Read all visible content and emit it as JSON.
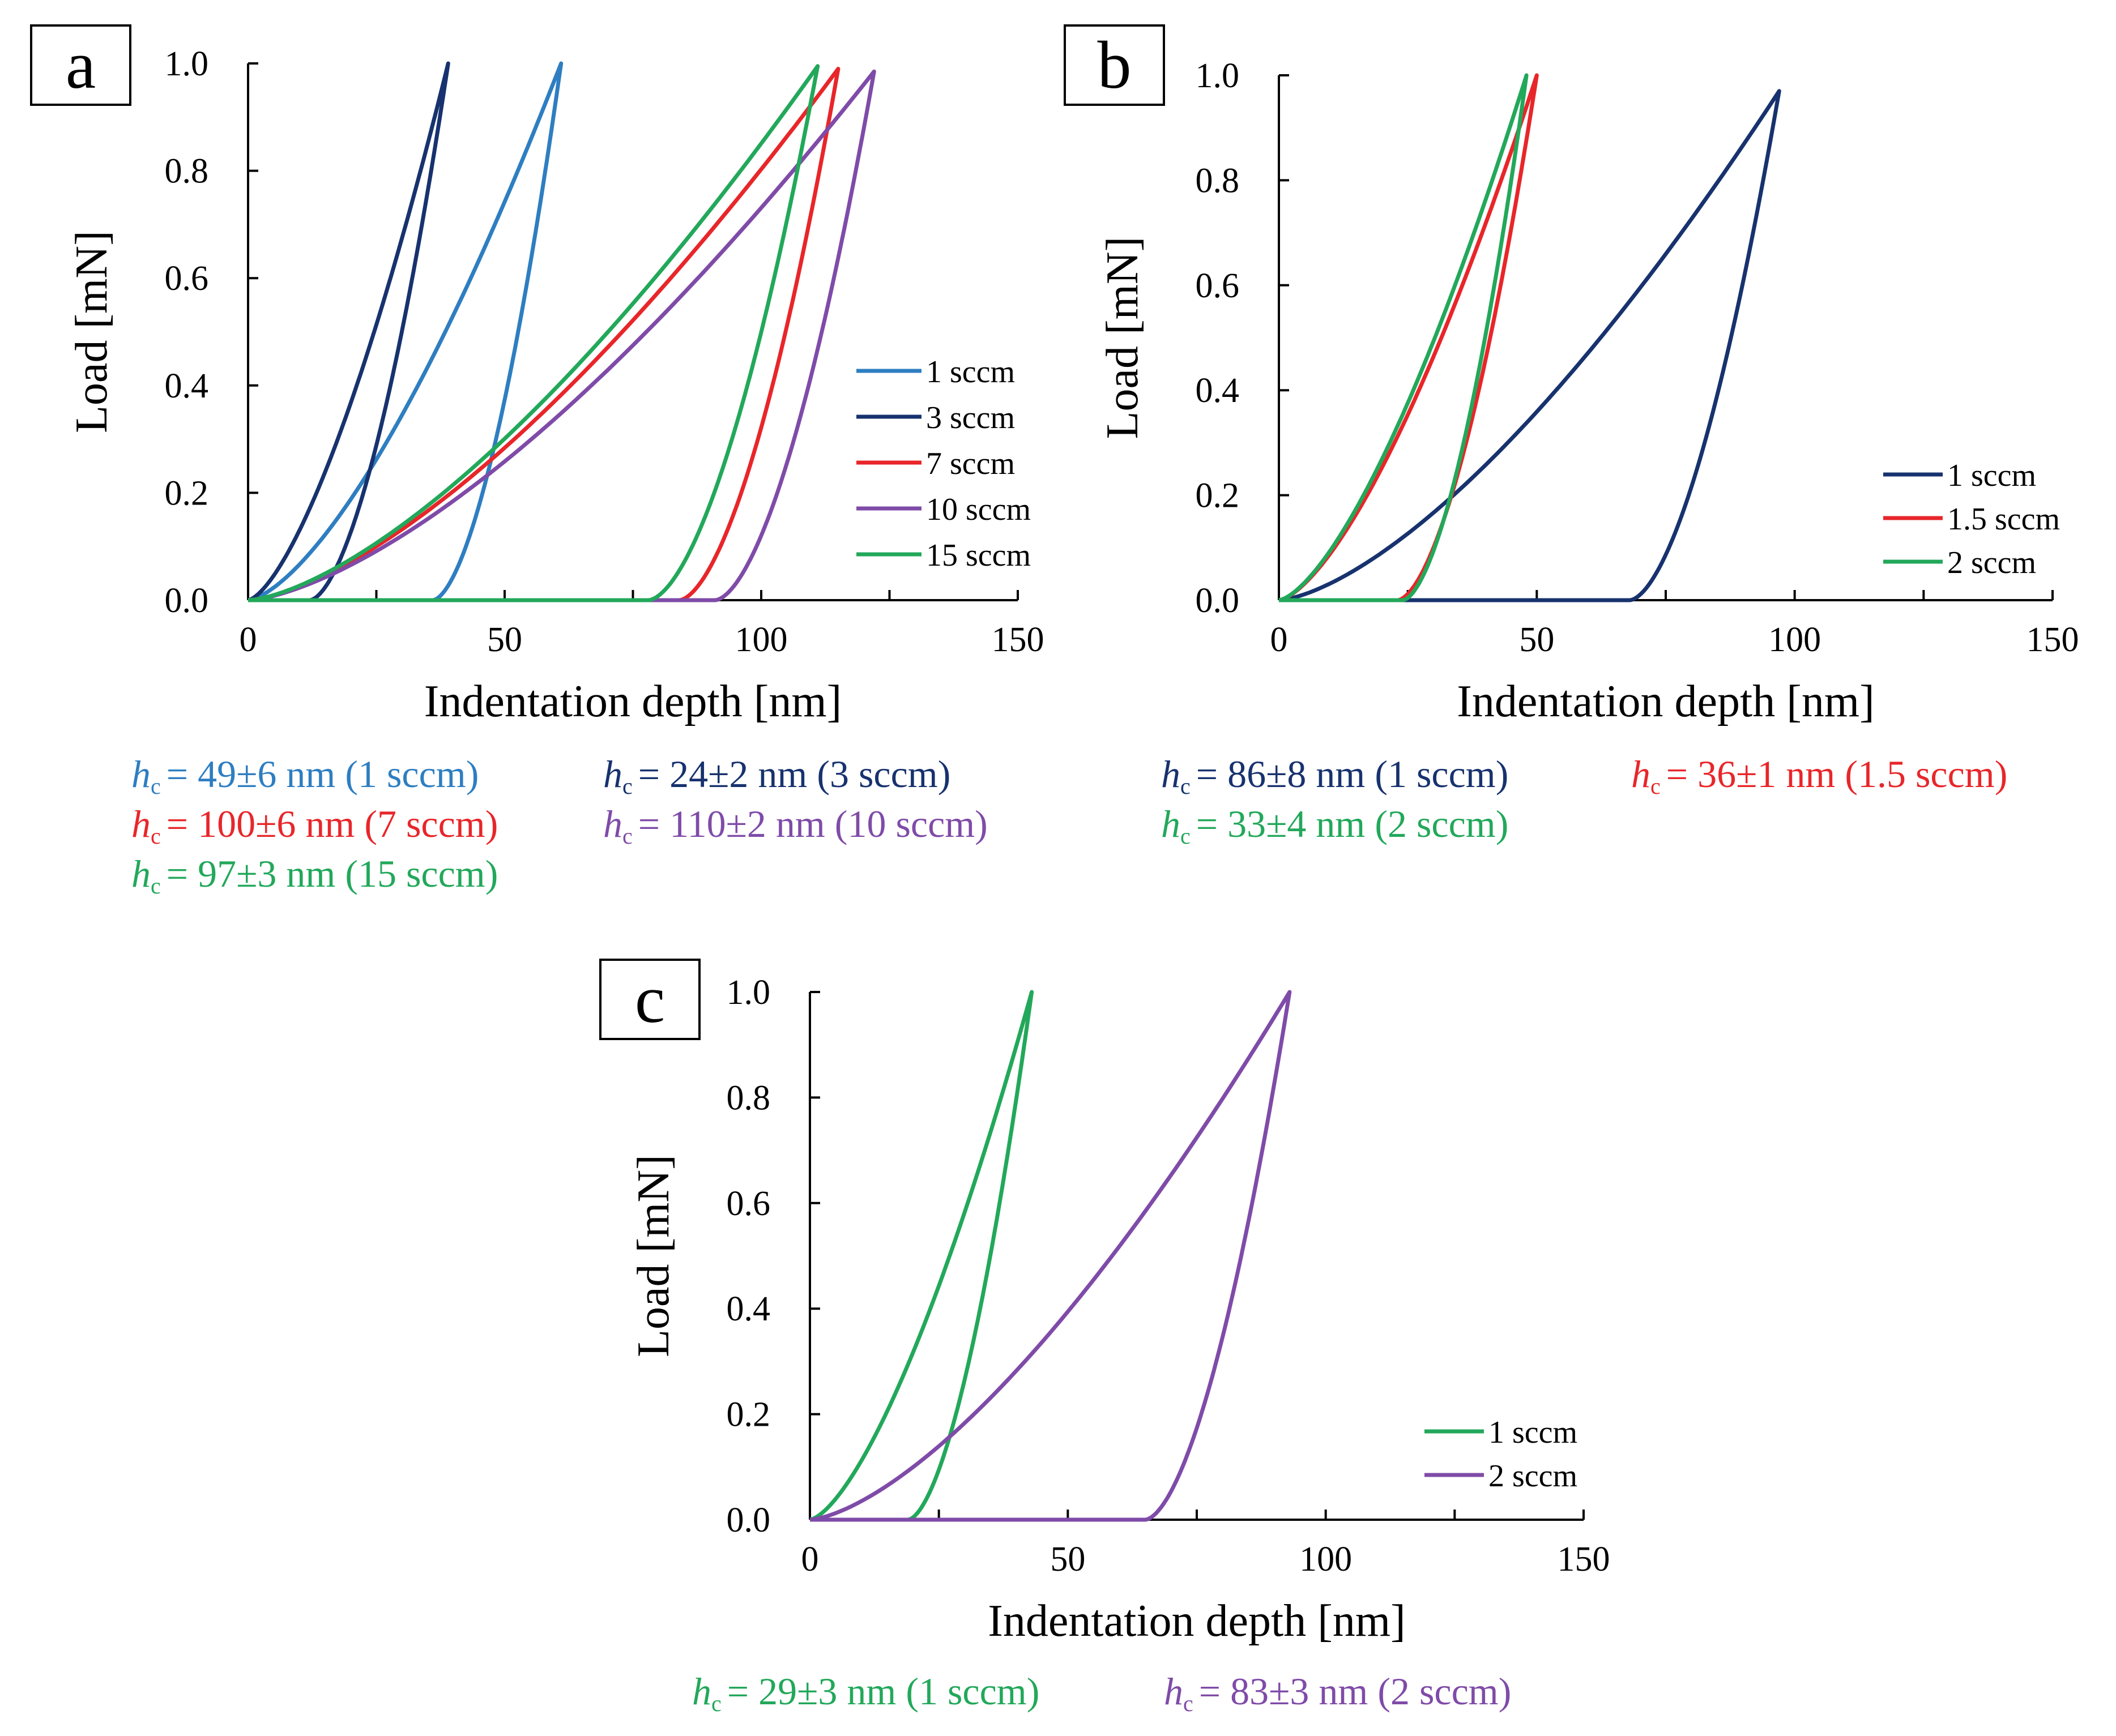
{
  "figure_colors": {
    "light_blue": "#2E7EC1",
    "dark_blue": "#17326E",
    "red": "#E8262A",
    "purple": "#7F4BA8",
    "green": "#22A85A",
    "axis": "#000000"
  },
  "hc_symbol": "h",
  "hc_subscript": "c",
  "chart_data": [
    {
      "panel": "a",
      "type": "line",
      "xlabel": "Indentation depth [nm]",
      "ylabel": "Load [mN]",
      "xlim": [
        0,
        150
      ],
      "ylim": [
        0,
        1.0
      ],
      "x_ticks": [
        0,
        50,
        100,
        150
      ],
      "y_ticks": [
        0.0,
        0.2,
        0.4,
        0.6,
        0.8,
        1.0
      ],
      "x_tick_labels": [
        "0",
        "50",
        "100",
        "150"
      ],
      "y_tick_labels": [
        "0.0",
        "0.2",
        "0.4",
        "0.6",
        "0.8",
        "1.0"
      ],
      "legend_position": "middle-right",
      "series": [
        {
          "name": "1 sccm",
          "color": "#2E7EC1",
          "hmax": 61,
          "hf": 36,
          "pmax": 1.0
        },
        {
          "name": "3 sccm",
          "color": "#17326E",
          "hmax": 39,
          "hf": 12,
          "pmax": 1.0
        },
        {
          "name": "7 sccm",
          "color": "#E8262A",
          "hmax": 115,
          "hf": 84,
          "pmax": 0.99
        },
        {
          "name": "10 sccm",
          "color": "#7F4BA8",
          "hmax": 122,
          "hf": 91,
          "pmax": 0.985
        },
        {
          "name": "15 sccm",
          "color": "#22A85A",
          "hmax": 111,
          "hf": 78,
          "pmax": 0.995
        }
      ],
      "hc_annotations": [
        {
          "value": "= 49±6 nm (1 sccm)",
          "color": "#2E7EC1"
        },
        {
          "value": "= 24±2 nm (3 sccm)",
          "color": "#17326E"
        },
        {
          "value": "= 100±6 nm (7 sccm)",
          "color": "#E8262A"
        },
        {
          "value": "= 110±2 nm (10 sccm)",
          "color": "#7F4BA8"
        },
        {
          "value": "= 97±3 nm (15 sccm)",
          "color": "#22A85A"
        }
      ]
    },
    {
      "panel": "b",
      "type": "line",
      "xlabel": "Indentation depth [nm]",
      "ylabel": "Load [mN]",
      "xlim": [
        0,
        150
      ],
      "ylim": [
        0,
        1.0
      ],
      "x_ticks": [
        0,
        50,
        100,
        150
      ],
      "y_ticks": [
        0.0,
        0.2,
        0.4,
        0.6,
        0.8,
        1.0
      ],
      "x_tick_labels": [
        "0",
        "50",
        "100",
        "150"
      ],
      "y_tick_labels": [
        "0.0",
        "0.2",
        "0.4",
        "0.6",
        "0.8",
        "1.0"
      ],
      "legend_position": "bottom-right",
      "series": [
        {
          "name": "1 sccm",
          "color": "#17326E",
          "hmax": 97,
          "hf": 68,
          "pmax": 0.97
        },
        {
          "name": "1.5 sccm",
          "color": "#E8262A",
          "hmax": 50,
          "hf": 23,
          "pmax": 1.0
        },
        {
          "name": "2 sccm",
          "color": "#22A85A",
          "hmax": 48,
          "hf": 24,
          "pmax": 1.0
        }
      ],
      "hc_annotations": [
        {
          "value": "= 86±8 nm (1 sccm)",
          "color": "#17326E"
        },
        {
          "value": "= 36±1 nm (1.5 sccm)",
          "color": "#E8262A"
        },
        {
          "value": "= 33±4 nm (2 sccm)",
          "color": "#22A85A"
        }
      ]
    },
    {
      "panel": "c",
      "type": "line",
      "xlabel": "Indentation depth [nm]",
      "ylabel": "Load [mN]",
      "xlim": [
        0,
        150
      ],
      "ylim": [
        0,
        1.0
      ],
      "x_ticks": [
        0,
        50,
        100,
        150
      ],
      "y_ticks": [
        0.0,
        0.2,
        0.4,
        0.6,
        0.8,
        1.0
      ],
      "x_tick_labels": [
        "0",
        "50",
        "100",
        "150"
      ],
      "y_tick_labels": [
        "0.0",
        "0.2",
        "0.4",
        "0.6",
        "0.8",
        "1.0"
      ],
      "legend_position": "bottom-right",
      "series": [
        {
          "name": "1 sccm",
          "color": "#22A85A",
          "hmax": 43,
          "hf": 19,
          "pmax": 1.0
        },
        {
          "name": "2 sccm",
          "color": "#7F4BA8",
          "hmax": 93,
          "hf": 65,
          "pmax": 1.0
        }
      ],
      "hc_annotations": [
        {
          "value": "= 29±3 nm (1 sccm)",
          "color": "#22A85A"
        },
        {
          "value": "= 83±3 nm (2 sccm)",
          "color": "#7F4BA8"
        }
      ]
    }
  ]
}
